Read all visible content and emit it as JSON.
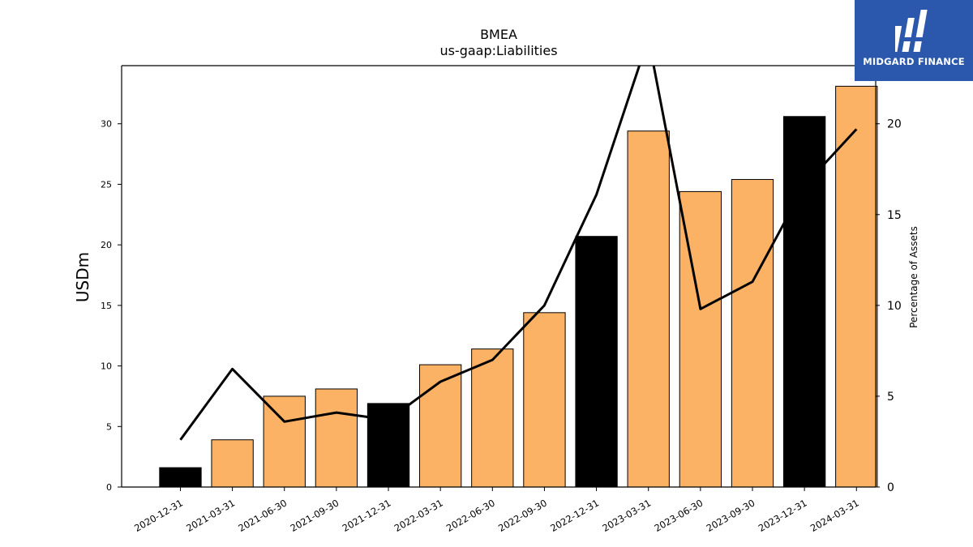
{
  "chart_data": {
    "type": "bar",
    "title": "BMEA",
    "subtitle": "us-gaap:Liabilities",
    "ylabel": "USDm",
    "ylabel_right": "Percentage of Assets",
    "categories": [
      "2020-12-31",
      "2021-03-31",
      "2021-06-30",
      "2021-09-30",
      "2021-12-31",
      "2022-03-31",
      "2022-06-30",
      "2022-09-30",
      "2022-12-31",
      "2023-03-31",
      "2023-06-30",
      "2023-09-30",
      "2023-12-31",
      "2024-03-31"
    ],
    "series": [
      {
        "axis": "left",
        "type": "bar",
        "values": [
          1.6,
          3.9,
          7.5,
          8.1,
          6.9,
          10.1,
          11.4,
          14.4,
          20.7,
          29.4,
          24.4,
          25.4,
          30.6,
          33.1
        ],
        "colors": [
          "#000000",
          "#fbb264",
          "#fbb264",
          "#fbb264",
          "#000000",
          "#fbb264",
          "#fbb264",
          "#fbb264",
          "#000000",
          "#fbb264",
          "#fbb264",
          "#fbb264",
          "#000000",
          "#fbb264"
        ]
      },
      {
        "axis": "right",
        "type": "line",
        "color": "#000000",
        "values": [
          2.6,
          6.5,
          3.6,
          4.1,
          3.7,
          5.8,
          7.0,
          10.0,
          16.1,
          24.7,
          9.8,
          11.3,
          16.6,
          19.7
        ]
      }
    ],
    "ylim": [
      0,
      34.8
    ],
    "ylim_right": [
      0,
      23.2
    ],
    "yticks": [
      0,
      5,
      10,
      15,
      20,
      25,
      30
    ],
    "yticks_right": [
      0,
      5,
      10,
      15,
      20
    ],
    "grid": false
  },
  "logo": {
    "text": "MIDGARD FINANCE",
    "background": "#2b57ad"
  }
}
